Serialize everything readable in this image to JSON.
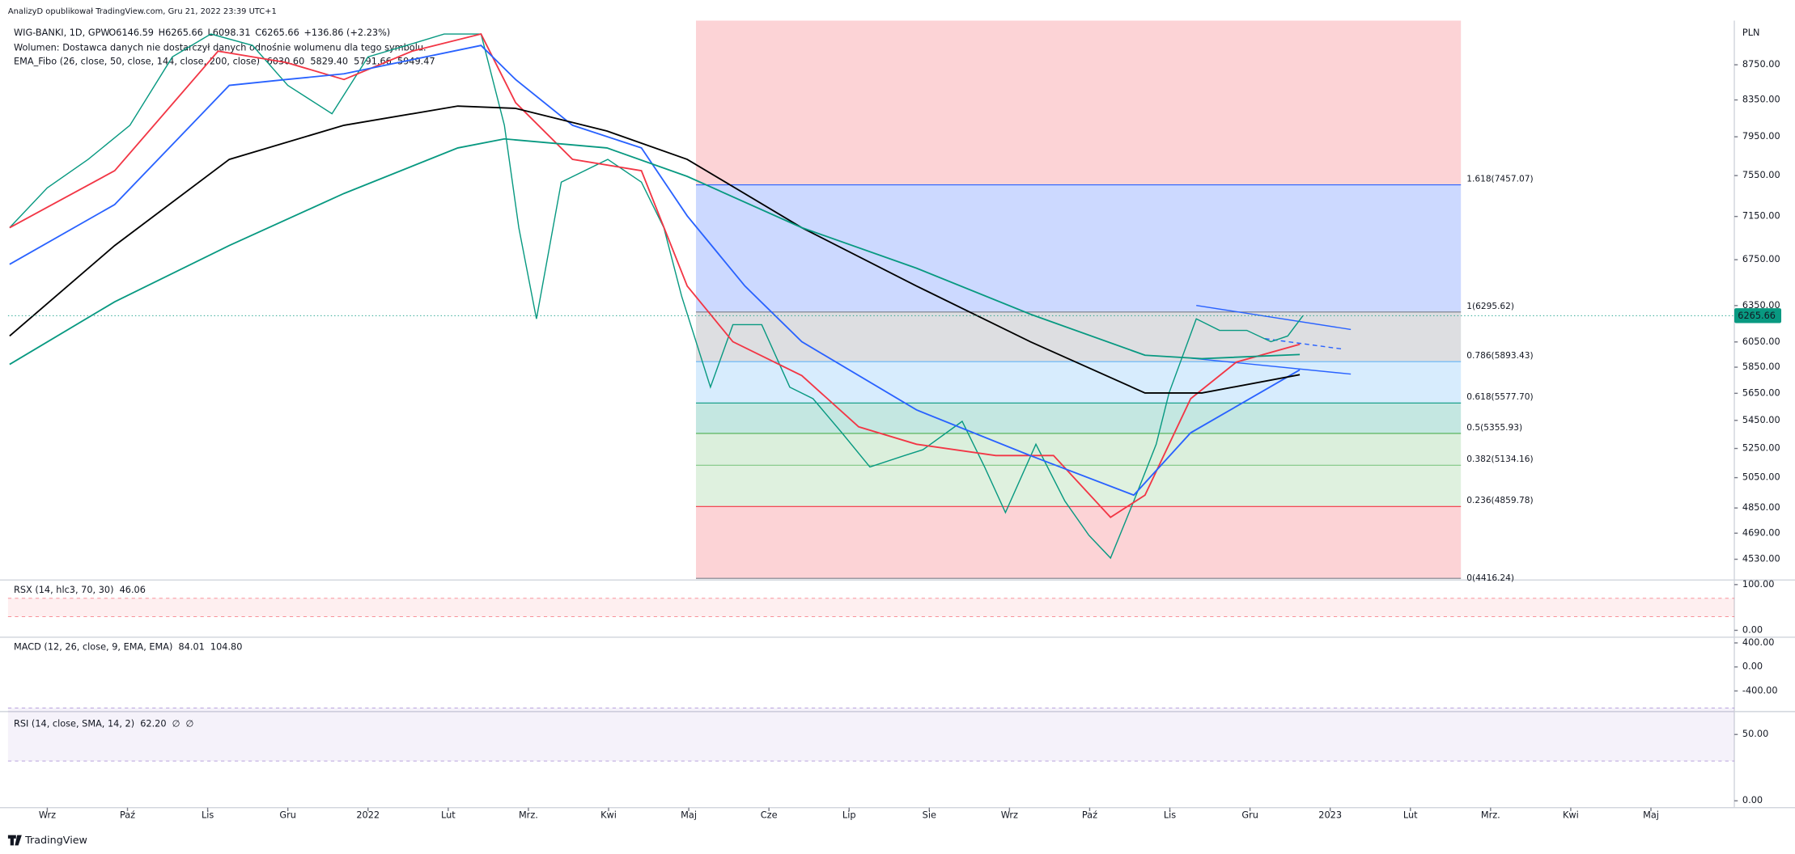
{
  "header": {
    "publisher": "AnalizyD opublikował TradingView.com, Gru 21, 2022 23:39 UTC+1",
    "ohlc": [
      "O6146.59",
      "H6265.66",
      "L6098.31",
      "C6265.66",
      "+136.86 (+2.23%)"
    ],
    "volume": "Wolumen: Dostawca danych nie dostarczył danych odnośnie wolumenu dla tego symbolu.",
    "ema_label": "EMA_Fibo (26, close, 50, close, 144, close, 200, close)",
    "ema_values": [
      "6030.60",
      "5829.40",
      "5791.66",
      "5949.47"
    ],
    "currency": "PLN",
    "footer": "TradingView"
  },
  "chart_data": {
    "type": "line",
    "log": true,
    "xlim": [
      -0.49,
      21.04
    ],
    "ylim": [
      4420,
      9280
    ],
    "xticks": [
      {
        "value": 0,
        "label": "Wrz"
      },
      {
        "value": 1,
        "label": "Paź"
      },
      {
        "value": 2,
        "label": "Lis"
      },
      {
        "value": 3,
        "label": "Gru"
      },
      {
        "value": 4,
        "label": "2022"
      },
      {
        "value": 5,
        "label": "Lut"
      },
      {
        "value": 6,
        "label": "Mrz."
      },
      {
        "value": 7,
        "label": "Kwi"
      },
      {
        "value": 8,
        "label": "Maj"
      },
      {
        "value": 9,
        "label": "Cze"
      },
      {
        "value": 10,
        "label": "Lip"
      },
      {
        "value": 11,
        "label": "Sie"
      },
      {
        "value": 12,
        "label": "Wrz"
      },
      {
        "value": 13,
        "label": "Paź"
      },
      {
        "value": 14,
        "label": "Lis"
      },
      {
        "value": 15,
        "label": "Gru"
      },
      {
        "value": 16,
        "label": "2023"
      },
      {
        "value": 17,
        "label": "Lut"
      },
      {
        "value": 18,
        "label": "Mrz."
      },
      {
        "value": 19,
        "label": "Kwi"
      },
      {
        "value": 20,
        "label": "Maj"
      }
    ],
    "yticks": [
      {
        "value": 8750,
        "label": "8750.00"
      },
      {
        "value": 8350,
        "label": "8350.00"
      },
      {
        "value": 7950,
        "label": "7950.00"
      },
      {
        "value": 7550,
        "label": "7550.00"
      },
      {
        "value": 7150,
        "label": "7150.00"
      },
      {
        "value": 6750,
        "label": "6750.00"
      },
      {
        "value": 6350,
        "label": "6350.00"
      },
      {
        "value": 6050,
        "label": "6050.00"
      },
      {
        "value": 5850,
        "label": "5850.00"
      },
      {
        "value": 5650,
        "label": "5650.00"
      },
      {
        "value": 5450,
        "label": "5450.00"
      },
      {
        "value": 5250,
        "label": "5250.00"
      },
      {
        "value": 5050,
        "label": "5050.00"
      },
      {
        "value": 4850,
        "label": "4850.00"
      },
      {
        "value": 4690,
        "label": "4690.00"
      },
      {
        "value": 4530,
        "label": "4530.00"
      }
    ],
    "series": [
      {
        "name": "WIG-BANKI, 1D, GPW",
        "color": "#089981",
        "x": [
          -0.47,
          0,
          0.51,
          1.03,
          1.56,
          2.04,
          2.56,
          3.0,
          3.55,
          4.0,
          4.48,
          4.95,
          5.41,
          5.7,
          5.88,
          6.1,
          6.41,
          6.99,
          7.41,
          7.69,
          7.91,
          8.27,
          8.55,
          8.91,
          9.26,
          9.55,
          9.91,
          10.26,
          10.69,
          10.92,
          11.41,
          11.69,
          11.95,
          12.33,
          12.69,
          12.99,
          13.26,
          13.55,
          13.83,
          13.99,
          14.33,
          14.62,
          14.96,
          15.26,
          15.47,
          15.66
        ],
        "values": [
          7044,
          7428,
          7715,
          8073,
          8843,
          9116,
          8978,
          8514,
          8198,
          8843,
          8978,
          9116,
          9116,
          8073,
          7044,
          6239,
          7484,
          7715,
          7484,
          7044,
          6431,
          5697,
          6191,
          6191,
          5697,
          5610,
          5361,
          5122,
          5201,
          5241,
          5443,
          5122,
          4821,
          5280,
          4895,
          4677,
          4537,
          4895,
          5280,
          5653,
          6239,
          6144,
          6144,
          6052,
          6098,
          6265.66
        ]
      },
      {
        "color": "#f23645",
        "x": [
          -0.47,
          0.84,
          2.13,
          2.98,
          3.7,
          4.55,
          5.41,
          5.84,
          6.55,
          7.41,
          7.98,
          8.55,
          9.41,
          10.12,
          10.84,
          11.83,
          12.55,
          13.26,
          13.69,
          14.26,
          14.83,
          15.62
        ],
        "values": [
          7044,
          7599,
          8910,
          8777,
          8580,
          8910,
          9116,
          8320,
          7715,
          7599,
          6518,
          6052,
          5785,
          5403,
          5280,
          5201,
          5201,
          4790,
          4934,
          5610,
          5890,
          6030.6
        ]
      },
      {
        "color": "#2962ff",
        "x": [
          -0.47,
          0.84,
          2.27,
          2.98,
          3.7,
          5.41,
          5.84,
          6.55,
          7.41,
          7.98,
          8.7,
          9.41,
          10.84,
          12.26,
          13.55,
          14.26,
          15.62
        ],
        "values": [
          6709,
          7264,
          8514,
          8580,
          8645,
          8978,
          8580,
          8073,
          7833,
          7155,
          6518,
          6052,
          5527,
          5201,
          4934,
          5361,
          5829.4
        ]
      },
      {
        "color": "#000000",
        "x": [
          -0.47,
          0.84,
          2.27,
          3.7,
          5.12,
          5.84,
          6.98,
          7.98,
          9.41,
          10.84,
          12.26,
          13.69,
          14.4,
          15.62
        ],
        "values": [
          6098,
          6879,
          7715,
          8073,
          8282,
          8257,
          8012,
          7715,
          7044,
          6518,
          6052,
          5653,
          5653,
          5791.66
        ]
      },
      {
        "color": "#089981",
        "x": [
          -0.47,
          0.84,
          2.27,
          3.7,
          5.12,
          5.7,
          6.98,
          7.98,
          9.41,
          10.84,
          12.26,
          13.69,
          14.4,
          15.62
        ],
        "values": [
          5872,
          6382,
          6879,
          7372,
          7833,
          7928,
          7833,
          7541,
          7044,
          6674,
          6278,
          5944,
          5917,
          5949.47
        ]
      }
    ],
    "fib": {
      "x_range": [
        8.09,
        17.63
      ],
      "fill_top": "rgba(242,54,69,0.22)",
      "levels": [
        {
          "value": 7457.07,
          "label": "1.618(7457.07)",
          "color": "#2962ff",
          "fill": "rgba(41,98,255,0.24)"
        },
        {
          "value": 6295.62,
          "label": "1(6295.62)",
          "color": "#787b86",
          "fill": "rgba(120,123,134,0.25)"
        },
        {
          "value": 5893.43,
          "label": "0.786(5893.43)",
          "color": "#64b5f6",
          "fill": "rgba(33,150,243,0.18)"
        },
        {
          "value": 5577.7,
          "label": "0.618(5577.70)",
          "color": "#089981",
          "fill": "rgba(8,153,129,0.24)"
        },
        {
          "value": 5355.93,
          "label": "0.5(5355.93)",
          "color": "#4caf50",
          "fill": "rgba(76,175,80,0.2)"
        },
        {
          "value": 5134.16,
          "label": "0.382(5134.16)",
          "color": "#81c784",
          "fill": "rgba(76,175,80,0.18)"
        },
        {
          "value": 4859.78,
          "label": "0.236(4859.78)",
          "color": "#f23645",
          "fill": "rgba(242,54,69,0.22)"
        },
        {
          "value": 4416.24,
          "label": "0(4416.24)",
          "color": "#787b86"
        }
      ]
    }
  },
  "indicators": [
    {
      "label": "RSX (14, hlc3, 70, 30)",
      "values": [
        "46.06"
      ],
      "colors": [
        "#ff9800"
      ],
      "ylim": [
        -12.5,
        107.5
      ],
      "band": [
        30,
        70
      ],
      "band_color": "#f23645",
      "yticks": [
        {
          "value": 100,
          "label": "100.00"
        },
        {
          "value": 0,
          "label": "0.00"
        }
      ]
    },
    {
      "label": "MACD (12, 26, close, 9, EMA, EMA)",
      "values": [
        "84.01",
        "104.80"
      ],
      "colors": [
        "#2962ff",
        "#ff6d00"
      ],
      "ylim": [
        -705,
        476
      ],
      "yticks": [
        {
          "value": 400,
          "label": "400.00"
        },
        {
          "value": 0,
          "label": "0.00"
        },
        {
          "value": -400,
          "label": "-400.00"
        }
      ]
    },
    {
      "label": "RSI (14, close, SMA, 14, 2)",
      "values": [
        "62.20",
        "∅",
        "∅"
      ],
      "colors": [
        "#7e57c2",
        "#131722",
        "#131722"
      ],
      "ylim": [
        -4.3,
        64.7
      ],
      "band": [
        30,
        70
      ],
      "band_color": "#7e57c2",
      "yticks": [
        {
          "value": 50,
          "label": "50.00"
        },
        {
          "value": 0,
          "label": "0.00"
        }
      ]
    }
  ]
}
